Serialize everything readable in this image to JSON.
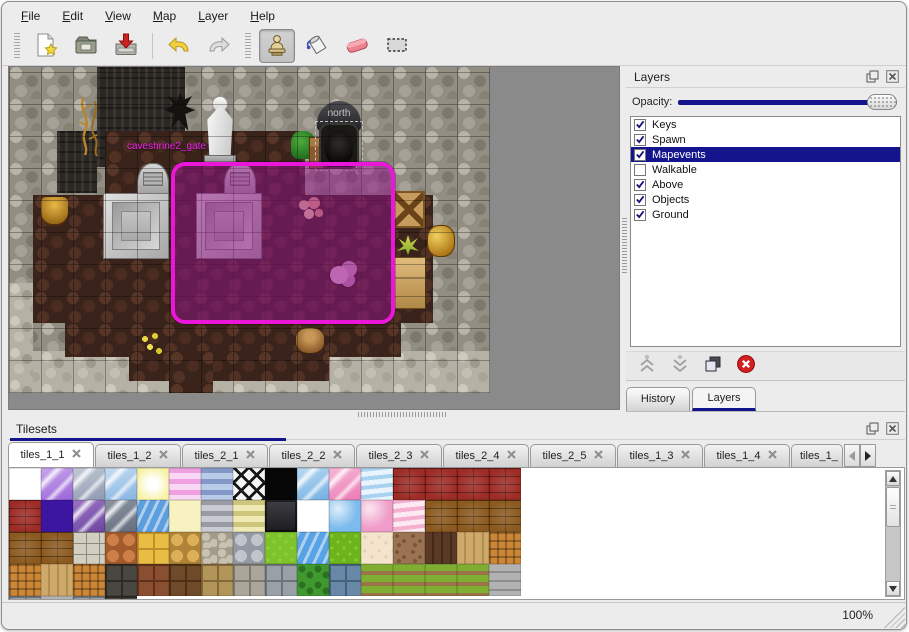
{
  "window": {
    "background": "#ececec",
    "accent_navy": "#14148c",
    "selection_magenta": "#ea17da",
    "map_void_gray": "#8a8a8a"
  },
  "menu": {
    "items": [
      "File",
      "Edit",
      "View",
      "Map",
      "Layer",
      "Help"
    ]
  },
  "toolbar": {
    "buttons": [
      {
        "name": "new-file",
        "icon": "new-file-icon",
        "group": 1
      },
      {
        "name": "open-file",
        "icon": "open-folder-icon",
        "group": 1
      },
      {
        "name": "save-file",
        "icon": "save-icon",
        "group": 1
      },
      {
        "name": "undo",
        "icon": "undo-icon",
        "group": 2
      },
      {
        "name": "redo",
        "icon": "redo-icon",
        "group": 2
      },
      {
        "name": "stamp-tool",
        "icon": "stamp-icon",
        "group": 3,
        "active": true
      },
      {
        "name": "fill-tool",
        "icon": "fill-icon",
        "group": 3
      },
      {
        "name": "eraser-tool",
        "icon": "eraser-icon",
        "group": 3
      },
      {
        "name": "select-tool",
        "icon": "select-rect-icon",
        "group": 3
      }
    ]
  },
  "map": {
    "labels": {
      "sign_north": "north",
      "event_gate": "caveshrine2_gate"
    }
  },
  "layers_panel": {
    "title": "Layers",
    "opacity_label": "Opacity:",
    "opacity_value_percent": 100,
    "items": [
      {
        "label": "Keys",
        "checked": true,
        "selected": false
      },
      {
        "label": "Spawn",
        "checked": true,
        "selected": false
      },
      {
        "label": "Mapevents",
        "checked": true,
        "selected": true
      },
      {
        "label": "Walkable",
        "checked": false,
        "selected": false
      },
      {
        "label": "Above",
        "checked": true,
        "selected": false
      },
      {
        "label": "Objects",
        "checked": true,
        "selected": false
      },
      {
        "label": "Ground",
        "checked": true,
        "selected": false
      }
    ],
    "tools": [
      {
        "name": "raise-layer",
        "icon": "chevron-up-double-icon",
        "disabled": true
      },
      {
        "name": "lower-layer",
        "icon": "chevron-down-double-icon",
        "disabled": true
      },
      {
        "name": "duplicate-layer",
        "icon": "duplicate-icon",
        "disabled": false
      },
      {
        "name": "delete-layer",
        "icon": "delete-icon",
        "disabled": false
      }
    ],
    "tabs": [
      {
        "label": "History",
        "active": false
      },
      {
        "label": "Layers",
        "active": true
      }
    ]
  },
  "tilesets_panel": {
    "title": "Tilesets",
    "status_zoom": "100%",
    "tabs": [
      {
        "label": "tiles_1_1",
        "active": true
      },
      {
        "label": "tiles_1_2"
      },
      {
        "label": "tiles_2_1"
      },
      {
        "label": "tiles_2_2"
      },
      {
        "label": "tiles_2_3"
      },
      {
        "label": "tiles_2_4"
      },
      {
        "label": "tiles_2_5"
      },
      {
        "label": "tiles_1_3"
      },
      {
        "label": "tiles_1_4"
      },
      {
        "label": "tiles_1_",
        "truncated": true
      }
    ],
    "grid": [
      [
        {
          "k": "empty"
        },
        {
          "k": "glass",
          "c": [
            "#c9a6ec",
            "#9a64d8"
          ]
        },
        {
          "k": "glass",
          "c": [
            "#c2c9d6",
            "#8e9ab0"
          ]
        },
        {
          "k": "glass",
          "c": [
            "#c4dcf2",
            "#86b4e4"
          ]
        },
        {
          "k": "glow",
          "c": [
            "#f8f2a2"
          ]
        },
        {
          "k": "hstripes",
          "c": [
            "#efa0e0",
            "#f8d8f4"
          ]
        },
        {
          "k": "hstripes",
          "c": [
            "#8498c8",
            "#b8cbe8"
          ]
        },
        {
          "k": "lattice"
        },
        {
          "k": "solid",
          "c": [
            "#060606"
          ]
        },
        {
          "k": "glass",
          "c": [
            "#b7d9f2",
            "#74b0e2"
          ]
        },
        {
          "k": "glass",
          "c": [
            "#f6b8d8",
            "#ec7ab4"
          ]
        },
        {
          "k": "wavy",
          "c": [
            "#a9d2f0",
            "#eaf4fc"
          ]
        },
        {
          "k": "brick",
          "c": [
            "#9e2c26"
          ]
        },
        {
          "k": "brick",
          "c": [
            "#9e2c26"
          ]
        },
        {
          "k": "brick",
          "c": [
            "#9e2c26"
          ]
        },
        {
          "k": "brick",
          "c": [
            "#9e2c26"
          ]
        },
        {
          "k": "brick",
          "c": [
            "#9e2c26"
          ]
        }
      ],
      [
        {
          "k": "solid",
          "c": [
            "#3c16a0"
          ]
        },
        {
          "k": "glass",
          "c": [
            "#9a74c4",
            "#6c44a0"
          ]
        },
        {
          "k": "glass",
          "c": [
            "#8c94a2",
            "#646e7e"
          ]
        },
        {
          "k": "water",
          "c": [
            "#5c9ede"
          ]
        },
        {
          "k": "solid",
          "c": [
            "#f8f2c0"
          ]
        },
        {
          "k": "hstripes",
          "c": [
            "#9a9aa4",
            "#cacad2"
          ]
        },
        {
          "k": "hstripes",
          "c": [
            "#cfc67e",
            "#efe9b4"
          ]
        },
        {
          "k": "sign"
        },
        {
          "k": "empty"
        },
        {
          "k": "tile",
          "c": [
            "#7cbcec"
          ]
        },
        {
          "k": "tile",
          "c": [
            "#f09cc8"
          ]
        },
        {
          "k": "wavy",
          "c": [
            "#f4afcf",
            "#fde9f2"
          ]
        },
        {
          "k": "brick",
          "c": [
            "#8c5a20"
          ]
        },
        {
          "k": "brick",
          "c": [
            "#8c5a20"
          ]
        },
        {
          "k": "brick",
          "c": [
            "#8c5a20"
          ]
        },
        {
          "k": "brick",
          "c": [
            "#8c5a20"
          ]
        },
        {
          "k": "brick",
          "c": [
            "#8c5a20"
          ]
        }
      ],
      [
        {
          "k": "flagstone",
          "c": [
            "#d2cec2",
            "#8e8a7e"
          ]
        },
        {
          "k": "cobble",
          "c": [
            "#cd7f47",
            "#a05a2c"
          ]
        },
        {
          "k": "bigtile",
          "c": [
            "#e9bc43",
            "#c0912a"
          ]
        },
        {
          "k": "cobble",
          "c": [
            "#ddb058",
            "#b08438"
          ]
        },
        {
          "k": "pebble",
          "c": [
            "#c9c2b2",
            "#a39c8a"
          ]
        },
        {
          "k": "cobble",
          "c": [
            "#c2c6cc",
            "#939aa4"
          ]
        },
        {
          "k": "grass",
          "c": [
            "#7ec32b",
            "#8fd13c"
          ]
        },
        {
          "k": "water",
          "c": [
            "#58a2e6"
          ]
        },
        {
          "k": "grass",
          "c": [
            "#6cb31c",
            "#82cc2e"
          ]
        },
        {
          "k": "sand",
          "c": [
            "#f4e4cc",
            "#e4d0b2"
          ]
        },
        {
          "k": "dirtdots",
          "c": [
            "#9b7352",
            "#7a5638"
          ]
        },
        {
          "k": "planksv",
          "c": [
            "#5a3a26",
            "#432a18"
          ]
        },
        {
          "k": "planksv",
          "c": [
            "#cfa96b",
            "#b38e50"
          ]
        },
        {
          "k": "weave",
          "c": [
            "#cd8635",
            "#a8641e"
          ]
        },
        {
          "k": "weave",
          "c": [
            "#cd8635",
            "#a8641e"
          ]
        },
        {
          "k": "planksv",
          "c": [
            "#cfa96b",
            "#b38e50"
          ]
        },
        {
          "k": "weave",
          "c": [
            "#cd8635",
            "#a8641e"
          ]
        }
      ],
      [
        {
          "k": "stonewall",
          "c": [
            "#4a4642",
            "#2e2a26"
          ]
        },
        {
          "k": "stonewall",
          "c": [
            "#8a4e30",
            "#60321c"
          ]
        },
        {
          "k": "stonewall",
          "c": [
            "#6e4a28",
            "#4c3016"
          ]
        },
        {
          "k": "stonewall",
          "c": [
            "#b09458",
            "#84683a"
          ]
        },
        {
          "k": "stonewall",
          "c": [
            "#aaa69a",
            "#7e7a6e"
          ]
        },
        {
          "k": "stonewall",
          "c": [
            "#9aa0a8",
            "#6e747c"
          ]
        },
        {
          "k": "hedge",
          "c": [
            "#3f992f",
            "#2a7220"
          ]
        },
        {
          "k": "stonewall",
          "c": [
            "#6888a8",
            "#46607c"
          ]
        },
        {
          "k": "grassrow",
          "c": [
            "#7fae33",
            "#9a7448"
          ]
        },
        {
          "k": "grassrow",
          "c": [
            "#7fae33",
            "#9a7448"
          ]
        },
        {
          "k": "grassrow",
          "c": [
            "#7fae33",
            "#9a7448"
          ]
        },
        {
          "k": "grassrow",
          "c": [
            "#7fae33",
            "#9a7448"
          ]
        },
        {
          "k": "planksh",
          "c": [
            "#b2b2b2",
            "#8e8e8e"
          ]
        },
        {
          "k": "stonewall",
          "c": [
            "#9aa0a8",
            "#6e747c"
          ]
        },
        {
          "k": "planksh",
          "c": [
            "#b2b2b2",
            "#8e8e8e"
          ]
        },
        {
          "k": "stonewall",
          "c": [
            "#9aa0a8",
            "#6e747c"
          ]
        },
        {
          "k": "stonewall",
          "c": [
            "#4a4642",
            "#2e2a26"
          ]
        }
      ]
    ]
  }
}
